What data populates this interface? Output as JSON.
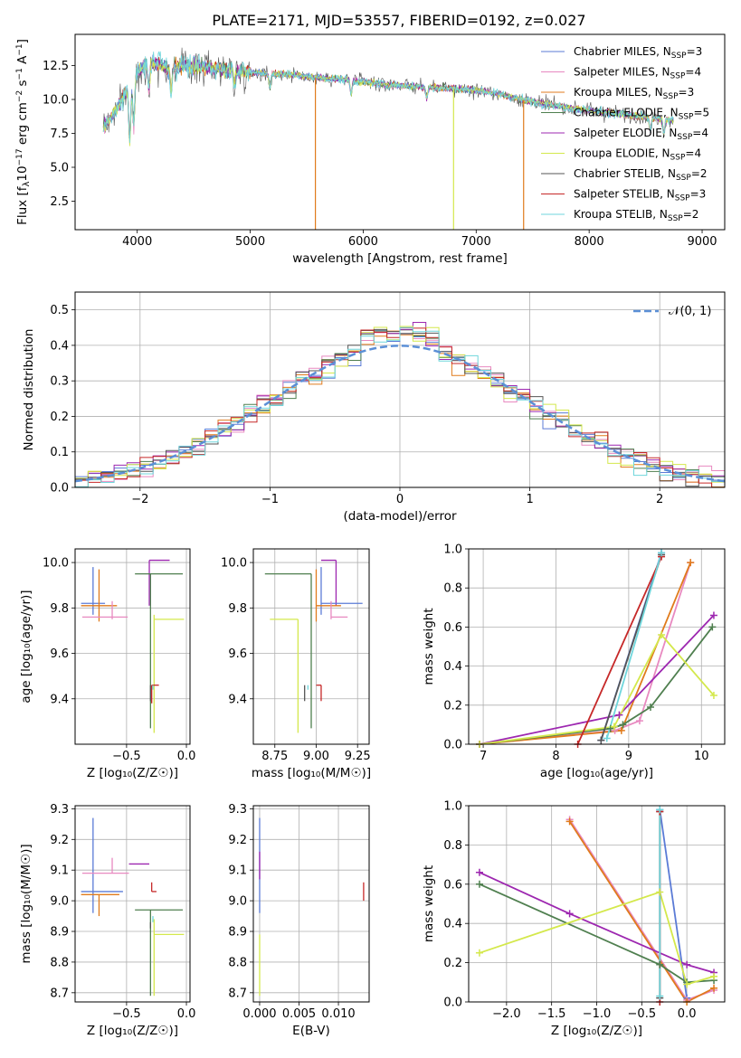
{
  "figure": {
    "title": "PLATE=2171, MJD=53557, FIBERID=0192, z=0.027"
  },
  "colors": {
    "chabrier_miles": "#5b7bd6",
    "salpeter_miles": "#e889c0",
    "kroupa_miles": "#e07b1c",
    "chabrier_elodie": "#4f7f4f",
    "salpeter_elodie": "#9d27b0",
    "kroupa_elodie": "#d4e84c",
    "chabrier_stelib": "#555555",
    "salpeter_stelib": "#c62828",
    "kroupa_stelib": "#6fd6dc"
  },
  "chart_data": [
    {
      "id": "spectrum",
      "type": "line",
      "xlabel": "wavelength [Angstrom, rest frame]",
      "ylabel_parts": {
        "a": "Flux [f",
        "b": "λ",
        "c": "10",
        "d": "−17",
        "e": " erg cm",
        "f": "−2",
        "g": " s",
        "h": "−1",
        "i": " A",
        "j": "−1",
        "k": "]"
      },
      "xlim": [
        3450,
        9200
      ],
      "ylim": [
        0.4,
        14.8
      ],
      "xticks": [
        4000,
        5000,
        6000,
        7000,
        8000,
        9000
      ],
      "yticks": [
        2.5,
        5.0,
        7.5,
        10.0,
        12.5
      ],
      "ytick_labels": [
        "2.5",
        "5.0",
        "7.5",
        "10.0",
        "12.5"
      ],
      "continuum": {
        "x": [
          3700,
          3800,
          3900,
          4000,
          4100,
          4200,
          4300,
          4400,
          4600,
          4800,
          5000,
          5200,
          5400,
          5600,
          5800,
          6000,
          6200,
          6400,
          6600,
          6800,
          7000,
          7200,
          7400,
          7600,
          7800,
          8000,
          8200,
          8400,
          8600,
          8800,
          9000
        ],
        "y": [
          8.0,
          9.0,
          10.5,
          12.0,
          12.8,
          12.6,
          12.2,
          12.5,
          12.4,
          12.2,
          12.0,
          11.9,
          11.8,
          11.6,
          11.5,
          11.3,
          11.1,
          11.0,
          10.9,
          10.8,
          10.7,
          10.4,
          10.0,
          9.7,
          9.4,
          9.2,
          9.0,
          8.8,
          8.6,
          8.4,
          8.2
        ]
      },
      "absorption_lines": [
        {
          "x": 3934,
          "depth": 4.0
        },
        {
          "x": 3969,
          "depth": 3.5
        },
        {
          "x": 4102,
          "depth": 2.0
        },
        {
          "x": 4300,
          "depth": 1.5
        },
        {
          "x": 4861,
          "depth": 1.0
        },
        {
          "x": 5175,
          "depth": 1.0
        },
        {
          "x": 5893,
          "depth": 1.0
        },
        {
          "x": 6563,
          "depth": 0.8
        },
        {
          "x": 8542,
          "depth": 1.0
        },
        {
          "x": 8662,
          "depth": 1.0
        }
      ],
      "legend_placement": "top-right",
      "series": [
        {
          "label": "Chabrier MILES, N",
          "sub": "SSP",
          "post": "=3",
          "color_key": "chabrier_miles"
        },
        {
          "label": "Salpeter MILES, N",
          "sub": "SSP",
          "post": "=4",
          "color_key": "salpeter_miles"
        },
        {
          "label": "Kroupa MILES, N",
          "sub": "SSP",
          "post": "=3",
          "color_key": "kroupa_miles"
        },
        {
          "label": "Chabrier ELODIE, N",
          "sub": "SSP",
          "post": "=5",
          "color_key": "chabrier_elodie"
        },
        {
          "label": "Salpeter ELODIE, N",
          "sub": "SSP",
          "post": "=4",
          "color_key": "salpeter_elodie"
        },
        {
          "label": "Kroupa ELODIE, N",
          "sub": "SSP",
          "post": "=4",
          "color_key": "kroupa_elodie"
        },
        {
          "label": "Chabrier STELIB, N",
          "sub": "SSP",
          "post": "=2",
          "color_key": "chabrier_stelib"
        },
        {
          "label": "Salpeter STELIB, N",
          "sub": "SSP",
          "post": "=3",
          "color_key": "salpeter_stelib"
        },
        {
          "label": "Kroupa STELIB, N",
          "sub": "SSP",
          "post": "=2",
          "color_key": "kroupa_stelib"
        }
      ]
    },
    {
      "id": "residuals",
      "type": "step",
      "xlabel": "(data-model)/error",
      "ylabel": "Normed distribution",
      "xlim": [
        -2.5,
        2.5
      ],
      "ylim": [
        0,
        0.55
      ],
      "xticks": [
        -2,
        -1,
        0,
        1,
        2
      ],
      "xtick_labels": [
        "−2",
        "−1",
        "0",
        "1",
        "2"
      ],
      "yticks": [
        0.0,
        0.1,
        0.2,
        0.3,
        0.4,
        0.5
      ],
      "ytick_labels": [
        "0.0",
        "0.1",
        "0.2",
        "0.3",
        "0.4",
        "0.5"
      ],
      "bin_width": 0.1,
      "legend_placement": "top-right",
      "gaussian_label": "𝒩(0, 1)",
      "gaussian_color": "#5b8fd6"
    },
    {
      "id": "age_vs_Z",
      "type": "errorbar",
      "xlabel": "Z [log₁₀(Z/Z☉)]",
      "ylabel": "age  [log₁₀(age/yr)]",
      "xlim": [
        -0.93,
        0.03
      ],
      "ylim": [
        9.2,
        10.06
      ],
      "xticks": [
        -0.5,
        0.0
      ],
      "xtick_labels": [
        "−0.5",
        "0.0"
      ],
      "yticks": [
        9.4,
        9.6,
        9.8,
        10.0
      ],
      "ytick_labels": [
        "9.4",
        "9.6",
        "9.8",
        "10.0"
      ],
      "points": [
        {
          "c": "chabrier_miles",
          "x": -0.78,
          "y": 9.82,
          "xe": [
            0.1,
            0.1
          ],
          "ye": [
            0.05,
            0.16
          ]
        },
        {
          "c": "kroupa_miles",
          "x": -0.73,
          "y": 9.81,
          "xe": [
            0.15,
            0.15
          ],
          "ye": [
            0.07,
            0.16
          ]
        },
        {
          "c": "salpeter_miles",
          "x": -0.62,
          "y": 9.76,
          "xe": [
            0.25,
            0.13
          ],
          "ye": [
            0.01,
            0.07
          ]
        },
        {
          "c": "salpeter_elodie",
          "x": -0.31,
          "y": 10.01,
          "xe": [
            0.0,
            0.17
          ],
          "ye": [
            0.2,
            0.0
          ]
        },
        {
          "c": "chabrier_elodie",
          "x": -0.3,
          "y": 9.95,
          "xe": [
            0.13,
            0.27
          ],
          "ye": [
            0.68,
            0.0
          ]
        },
        {
          "c": "kroupa_elodie",
          "x": -0.27,
          "y": 9.75,
          "xe": [
            0.0,
            0.25
          ],
          "ye": [
            0.5,
            0.02
          ]
        },
        {
          "c": "chabrier_stelib",
          "x": -0.3,
          "y": 9.46,
          "xe": [
            0.0,
            0.0
          ],
          "ye": [
            0.07,
            0.0
          ]
        },
        {
          "c": "salpeter_stelib",
          "x": -0.29,
          "y": 9.46,
          "xe": [
            0.0,
            0.06
          ],
          "ye": [
            0.08,
            0.0
          ]
        },
        {
          "c": "kroupa_stelib",
          "x": -0.28,
          "y": 9.46,
          "xe": [
            0.0,
            0.0
          ],
          "ye": [
            0.02,
            0.0
          ]
        }
      ]
    },
    {
      "id": "age_vs_mass",
      "type": "errorbar",
      "xlabel": "mass [log₁₀(M/M☉)]",
      "ylabel": "",
      "xlim": [
        8.62,
        9.32
      ],
      "ylim": [
        9.2,
        10.06
      ],
      "xticks": [
        8.75,
        9.0,
        9.25
      ],
      "xtick_labels": [
        "8.75",
        "9.00",
        "9.25"
      ],
      "yticks": [
        9.4,
        9.6,
        9.8,
        10.0
      ],
      "ytick_labels": [
        "9.4",
        "9.6",
        "9.8",
        "10.0"
      ],
      "points": [
        {
          "c": "chabrier_elodie",
          "x": 8.97,
          "y": 9.95,
          "xe": [
            0.28,
            0.0
          ],
          "ye": [
            0.68,
            0.0
          ]
        },
        {
          "c": "salpeter_elodie",
          "x": 9.12,
          "y": 10.01,
          "xe": [
            0.09,
            0.0
          ],
          "ye": [
            0.2,
            0.0
          ]
        },
        {
          "c": "chabrier_miles",
          "x": 9.03,
          "y": 9.82,
          "xe": [
            0.0,
            0.25
          ],
          "ye": [
            0.05,
            0.16
          ]
        },
        {
          "c": "kroupa_miles",
          "x": 9.0,
          "y": 9.81,
          "xe": [
            0.0,
            0.15
          ],
          "ye": [
            0.07,
            0.16
          ]
        },
        {
          "c": "salpeter_miles",
          "x": 9.09,
          "y": 9.76,
          "xe": [
            0.0,
            0.1
          ],
          "ye": [
            0.01,
            0.07
          ]
        },
        {
          "c": "kroupa_elodie",
          "x": 8.89,
          "y": 9.75,
          "xe": [
            0.17,
            0.0
          ],
          "ye": [
            0.5,
            0.0
          ]
        },
        {
          "c": "chabrier_stelib",
          "x": 8.93,
          "y": 9.46,
          "xe": [
            0.0,
            0.0
          ],
          "ye": [
            0.07,
            0.0
          ]
        },
        {
          "c": "kroupa_stelib",
          "x": 8.95,
          "y": 9.46,
          "xe": [
            0.0,
            0.0
          ],
          "ye": [
            0.02,
            0.0
          ]
        },
        {
          "c": "salpeter_stelib",
          "x": 9.03,
          "y": 9.46,
          "xe": [
            0.03,
            0.0
          ],
          "ye": [
            0.07,
            0.0
          ]
        }
      ]
    },
    {
      "id": "weight_vs_age",
      "type": "line",
      "xlabel": "age  [log₁₀(age/yr)]",
      "ylabel": "mass weight",
      "xlim": [
        6.8,
        10.32
      ],
      "ylim": [
        0,
        1
      ],
      "xticks": [
        7,
        8,
        9,
        10
      ],
      "xtick_labels": [
        "7",
        "8",
        "9",
        "10"
      ],
      "yticks": [
        0.0,
        0.2,
        0.4,
        0.6,
        0.8,
        1.0
      ],
      "ytick_labels": [
        "0.0",
        "0.2",
        "0.4",
        "0.6",
        "0.8",
        "1.0"
      ],
      "series": [
        {
          "c": "chabrier_miles",
          "x": [
            8.62,
            9.45
          ],
          "y": [
            0.02,
            0.98
          ]
        },
        {
          "c": "salpeter_miles",
          "x": [
            6.95,
            8.81,
            9.15,
            9.85
          ],
          "y": [
            0.0,
            0.07,
            0.12,
            0.93
          ]
        },
        {
          "c": "kroupa_miles",
          "x": [
            6.95,
            8.9,
            9.85
          ],
          "y": [
            0.0,
            0.07,
            0.93
          ]
        },
        {
          "c": "chabrier_elodie",
          "x": [
            6.95,
            8.75,
            8.92,
            9.3,
            10.15
          ],
          "y": [
            0.0,
            0.08,
            0.1,
            0.19,
            0.6
          ]
        },
        {
          "c": "salpeter_elodie",
          "x": [
            6.95,
            8.87,
            10.17
          ],
          "y": [
            0.0,
            0.15,
            0.66
          ]
        },
        {
          "c": "kroupa_elodie",
          "x": [
            6.95,
            8.8,
            9.45,
            10.17
          ],
          "y": [
            0.0,
            0.09,
            0.56,
            0.25
          ]
        },
        {
          "c": "chabrier_stelib",
          "x": [
            8.62,
            9.45
          ],
          "y": [
            0.02,
            0.97
          ]
        },
        {
          "c": "salpeter_stelib",
          "x": [
            8.3,
            9.45
          ],
          "y": [
            0.0,
            0.96
          ]
        },
        {
          "c": "kroupa_stelib",
          "x": [
            8.7,
            9.45
          ],
          "y": [
            0.03,
            0.98
          ]
        }
      ]
    },
    {
      "id": "mass_vs_Z",
      "type": "errorbar",
      "xlabel": "Z [log₁₀(Z/Z☉)]",
      "ylabel": "mass [log₁₀(M/M☉)]",
      "xlim": [
        -0.93,
        0.03
      ],
      "ylim": [
        8.67,
        9.31
      ],
      "xticks": [
        -0.5,
        0.0
      ],
      "xtick_labels": [
        "−0.5",
        "0.0"
      ],
      "yticks": [
        8.7,
        8.8,
        8.9,
        9.0,
        9.1,
        9.2,
        9.3
      ],
      "ytick_labels": [
        "8.7",
        "8.8",
        "8.9",
        "9.0",
        "9.1",
        "9.2",
        "9.3"
      ],
      "points": [
        {
          "c": "chabrier_miles",
          "x": -0.78,
          "y": 9.03,
          "xe": [
            0.1,
            0.25
          ],
          "ye": [
            0.07,
            0.24
          ]
        },
        {
          "c": "kroupa_miles",
          "x": -0.73,
          "y": 9.02,
          "xe": [
            0.15,
            0.17
          ],
          "ye": [
            0.07,
            0.0
          ]
        },
        {
          "c": "salpeter_miles",
          "x": -0.62,
          "y": 9.09,
          "xe": [
            0.25,
            0.14
          ],
          "ye": [
            0.0,
            0.05
          ]
        },
        {
          "c": "salpeter_elodie",
          "x": -0.31,
          "y": 9.12,
          "xe": [
            0.17,
            0.0
          ],
          "ye": [
            0.0,
            0.0
          ]
        },
        {
          "c": "chabrier_elodie",
          "x": -0.3,
          "y": 8.97,
          "xe": [
            0.13,
            0.27
          ],
          "ye": [
            0.28,
            0.0
          ]
        },
        {
          "c": "kroupa_elodie",
          "x": -0.27,
          "y": 8.89,
          "xe": [
            0.0,
            0.25
          ],
          "ye": [
            0.2,
            0.05
          ]
        },
        {
          "c": "chabrier_stelib",
          "x": -0.3,
          "y": 8.93,
          "xe": [
            0.0,
            0.0
          ],
          "ye": [
            0.02,
            0.0
          ]
        },
        {
          "c": "salpeter_stelib",
          "x": -0.29,
          "y": 9.03,
          "xe": [
            0.0,
            0.04
          ],
          "ye": [
            0.0,
            0.03
          ]
        },
        {
          "c": "kroupa_stelib",
          "x": -0.28,
          "y": 8.95,
          "xe": [
            0.0,
            0.0
          ],
          "ye": [
            0.02,
            0.0
          ]
        }
      ]
    },
    {
      "id": "mass_vs_ebv",
      "type": "errorbar",
      "xlabel": "E(B-V)",
      "ylabel": "",
      "xlim": [
        -0.0008,
        0.0139
      ],
      "ylim": [
        8.67,
        9.31
      ],
      "xticks": [
        0.0,
        0.005,
        0.01
      ],
      "xtick_labels": [
        "0.000",
        "0.005",
        "0.010"
      ],
      "yticks": [
        8.7,
        8.8,
        8.9,
        9.0,
        9.1,
        9.2,
        9.3
      ],
      "ytick_labels": [
        "8.7",
        "8.8",
        "8.9",
        "9.0",
        "9.1",
        "9.2",
        "9.3"
      ],
      "points": [
        {
          "c": "chabrier_miles",
          "x": 0.0,
          "y": 9.03,
          "xe": [
            0.0,
            0.0
          ],
          "ye": [
            0.07,
            0.24
          ]
        },
        {
          "c": "salpeter_elodie",
          "x": 0.0,
          "y": 9.12,
          "xe": [
            0.0,
            0.0
          ],
          "ye": [
            0.05,
            0.04
          ]
        },
        {
          "c": "kroupa_elodie",
          "x": 0.0,
          "y": 8.89,
          "xe": [
            0.0,
            0.0
          ],
          "ye": [
            0.2,
            0.0
          ]
        },
        {
          "c": "salpeter_stelib",
          "x": 0.0132,
          "y": 9.03,
          "xe": [
            0.0,
            0.0
          ],
          "ye": [
            0.03,
            0.03
          ]
        }
      ]
    },
    {
      "id": "weight_vs_Z",
      "type": "line",
      "xlabel": "Z [log₁₀(Z/Z☉)]",
      "ylabel": "mass weight",
      "xlim": [
        -2.42,
        0.42
      ],
      "ylim": [
        0,
        1
      ],
      "xticks": [
        -2.0,
        -1.5,
        -1.0,
        -0.5,
        0.0
      ],
      "xtick_labels": [
        "−2.0",
        "−1.5",
        "−1.0",
        "−0.5",
        "0.0"
      ],
      "yticks": [
        0.0,
        0.2,
        0.4,
        0.6,
        0.8,
        1.0
      ],
      "ytick_labels": [
        "0.0",
        "0.2",
        "0.4",
        "0.6",
        "0.8",
        "1.0"
      ],
      "series": [
        {
          "c": "chabrier_miles",
          "x": [
            -0.3,
            0.0
          ],
          "y": [
            0.98,
            0.02
          ]
        },
        {
          "c": "salpeter_miles",
          "x": [
            -1.3,
            0.0,
            0.3
          ],
          "y": [
            0.93,
            0.01,
            0.06
          ]
        },
        {
          "c": "kroupa_miles",
          "x": [
            -1.3,
            0.0,
            0.3
          ],
          "y": [
            0.92,
            0.0,
            0.07
          ]
        },
        {
          "c": "chabrier_elodie",
          "x": [
            -2.3,
            -0.3,
            0.0,
            0.3
          ],
          "y": [
            0.6,
            0.19,
            0.1,
            0.11
          ]
        },
        {
          "c": "salpeter_elodie",
          "x": [
            -2.3,
            -1.3,
            0.0,
            0.3
          ],
          "y": [
            0.66,
            0.45,
            0.19,
            0.15
          ]
        },
        {
          "c": "kroupa_elodie",
          "x": [
            -2.3,
            -0.3,
            0.0,
            0.3
          ],
          "y": [
            0.25,
            0.56,
            0.09,
            0.13
          ]
        },
        {
          "c": "chabrier_stelib",
          "x": [
            -0.3,
            -0.3
          ],
          "y": [
            0.97,
            0.02
          ]
        },
        {
          "c": "salpeter_stelib",
          "x": [
            -0.3,
            -0.3
          ],
          "y": [
            0.97,
            0.0
          ]
        },
        {
          "c": "kroupa_stelib",
          "x": [
            -0.3,
            -0.3
          ],
          "y": [
            0.98,
            0.03
          ]
        }
      ]
    }
  ]
}
